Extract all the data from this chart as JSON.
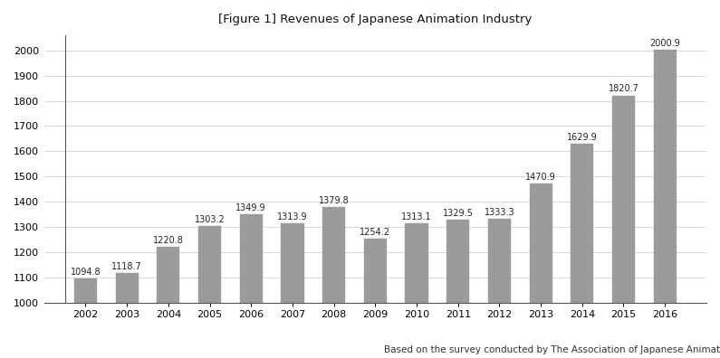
{
  "title": "[Figure 1] Revenues of Japanese Animation Industry",
  "footnote": "Based on the survey conducted by The Association of Japanese Animations",
  "years": [
    2002,
    2003,
    2004,
    2005,
    2006,
    2007,
    2008,
    2009,
    2010,
    2011,
    2012,
    2013,
    2014,
    2015,
    2016
  ],
  "values": [
    1094.8,
    1118.7,
    1220.8,
    1303.2,
    1349.9,
    1313.9,
    1379.8,
    1254.2,
    1313.1,
    1329.5,
    1333.3,
    1470.9,
    1629.9,
    1820.7,
    2000.9
  ],
  "bar_color": "#9b9b9b",
  "bar_edgecolor": "#9b9b9b",
  "background_color": "#ffffff",
  "baseline": 1000,
  "ylim": [
    1000,
    2060
  ],
  "yticks": [
    1000,
    1100,
    1200,
    1300,
    1400,
    1500,
    1600,
    1700,
    1800,
    1900,
    2000
  ],
  "title_fontsize": 9.5,
  "tick_fontsize": 8,
  "footnote_fontsize": 7.5,
  "value_label_fontsize": 7
}
